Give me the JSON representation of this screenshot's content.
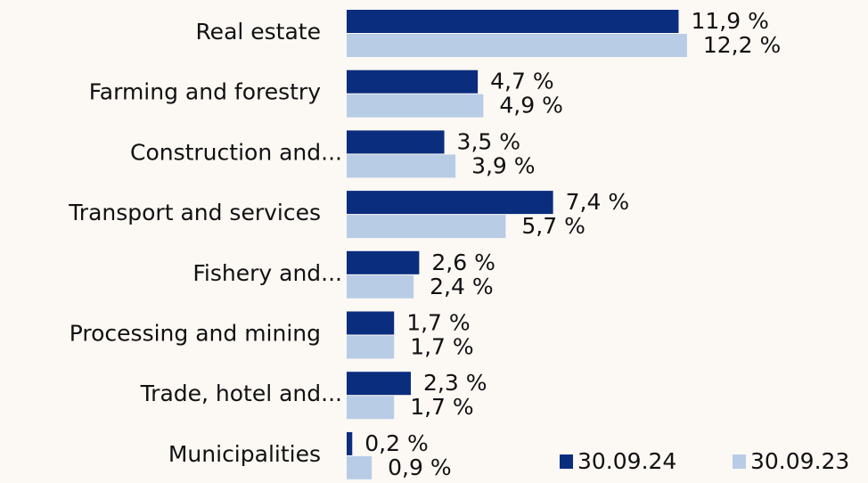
{
  "chart_data": {
    "type": "bar",
    "orientation": "horizontal",
    "categories": [
      "Real estate",
      "Farming and forestry",
      "Construction and...",
      "Transport and services",
      "Fishery and...",
      "Processing and mining",
      "Trade, hotel and...",
      "Municipalities"
    ],
    "series": [
      {
        "name": "30.09.24",
        "color": "#0a2d7e",
        "values": [
          11.9,
          4.7,
          3.5,
          7.4,
          2.6,
          1.7,
          2.3,
          0.2
        ],
        "value_labels": [
          "11,9 %",
          "4,7 %",
          "3,5 %",
          "7,4 %",
          "2,6 %",
          "1,7 %",
          "2,3 %",
          "0,2 %"
        ]
      },
      {
        "name": "30.09.23",
        "color": "#b8cce6",
        "values": [
          12.2,
          4.9,
          3.9,
          5.7,
          2.4,
          1.7,
          1.7,
          0.9
        ],
        "value_labels": [
          "12,2 %",
          "4,9 %",
          "3,9 %",
          "5,7 %",
          "2,4 %",
          "1,7 %",
          "1,7 %",
          "0,9 %"
        ]
      }
    ],
    "legend": "bottom-right"
  }
}
